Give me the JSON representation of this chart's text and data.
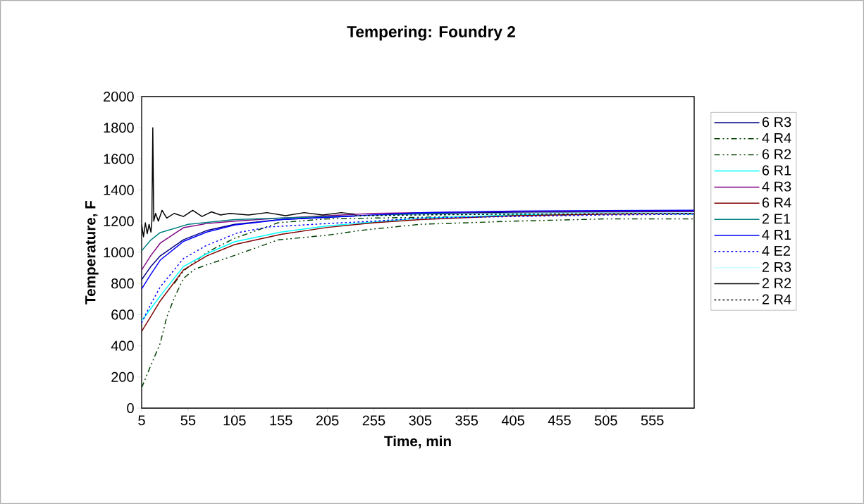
{
  "chart_data": {
    "type": "line",
    "title": "Tempering: Foundry 2",
    "xlabel": "Time, min",
    "ylabel": "Temperature, F",
    "xlim": [
      5,
      600
    ],
    "xticks": [
      5,
      55,
      105,
      155,
      205,
      255,
      305,
      355,
      405,
      455,
      505,
      555
    ],
    "ylim": [
      0,
      2000
    ],
    "yticks": [
      0,
      200,
      400,
      600,
      800,
      1000,
      1200,
      1400,
      1600,
      1800,
      2000
    ],
    "legend": "right",
    "grid": false,
    "series": [
      {
        "name": "6 R3",
        "color": "#000080",
        "line_style": "solid",
        "x": [
          5,
          15,
          25,
          50,
          75,
          105,
          155,
          205,
          305,
          405,
          505,
          600
        ],
        "values": [
          824,
          910,
          977,
          1081,
          1140,
          1180,
          1210,
          1225,
          1250,
          1258,
          1260,
          1262
        ]
      },
      {
        "name": "4 R4",
        "color": "#004000",
        "line_style": "dashed",
        "x": [
          5,
          15,
          25,
          32,
          40,
          50,
          62,
          75,
          105,
          152,
          205,
          240,
          255,
          305,
          405,
          505,
          600
        ],
        "values": [
          131,
          276,
          416,
          584,
          706,
          833,
          891,
          920,
          980,
          1080,
          1110,
          1140,
          1150,
          1180,
          1200,
          1215,
          1215
        ]
      },
      {
        "name": "6 R2",
        "color": "#004000",
        "line_style": "dashed",
        "x": [
          40,
          50,
          75,
          105,
          152,
          205,
          255,
          305,
          405,
          505,
          600
        ],
        "values": [
          800,
          880,
          1000,
          1090,
          1190,
          1215,
          1220,
          1225,
          1235,
          1245,
          1250
        ]
      },
      {
        "name": "6 R1",
        "color": "#00ffff",
        "line_style": "solid",
        "x": [
          5,
          15,
          25,
          50,
          75,
          105,
          155,
          205,
          255,
          305,
          405,
          505,
          600
        ],
        "values": [
          561,
          640,
          720,
          909,
          991,
          1068,
          1130,
          1170,
          1195,
          1220,
          1240,
          1250,
          1245
        ]
      },
      {
        "name": "4 R3",
        "color": "#800080",
        "line_style": "solid",
        "x": [
          5,
          15,
          25,
          50,
          75,
          105,
          155,
          205,
          255,
          305,
          405,
          505,
          600
        ],
        "values": [
          887,
          980,
          1059,
          1158,
          1185,
          1200,
          1220,
          1235,
          1250,
          1255,
          1262,
          1264,
          1265
        ]
      },
      {
        "name": "6 R4",
        "color": "#800000",
        "line_style": "solid",
        "x": [
          5,
          15,
          25,
          50,
          75,
          105,
          155,
          205,
          255,
          305,
          405,
          505,
          600
        ],
        "values": [
          493,
          590,
          688,
          887,
          977,
          1050,
          1115,
          1160,
          1190,
          1210,
          1235,
          1245,
          1250
        ]
      },
      {
        "name": "2 E1",
        "color": "#008080",
        "line_style": "solid",
        "x": [
          5,
          15,
          25,
          55,
          105,
          205,
          305,
          405,
          505,
          600
        ],
        "values": [
          1010,
          1080,
          1127,
          1180,
          1210,
          1230,
          1245,
          1250,
          1253,
          1255
        ]
      },
      {
        "name": "4 R1",
        "color": "#0000ff",
        "line_style": "solid",
        "x": [
          5,
          15,
          25,
          50,
          75,
          105,
          155,
          205,
          305,
          405,
          505,
          600
        ],
        "values": [
          765,
          860,
          950,
          1070,
          1130,
          1175,
          1210,
          1225,
          1255,
          1265,
          1268,
          1270
        ]
      },
      {
        "name": "4 E2",
        "color": "#0000ff",
        "line_style": "dotted",
        "x": [
          5,
          15,
          25,
          50,
          75,
          109,
          142,
          205,
          255,
          305,
          405,
          505,
          600
        ],
        "values": [
          547,
          670,
          778,
          960,
          1045,
          1127,
          1163,
          1185,
          1200,
          1220,
          1230,
          1240,
          1245
        ]
      },
      {
        "name": "2 R3",
        "color": "#ccffff",
        "line_style": "solid",
        "x": [
          235,
          305,
          405,
          505,
          600
        ],
        "values": [
          1230,
          1240,
          1248,
          1252,
          1255
        ]
      },
      {
        "name": "2 R2",
        "color": "#000000",
        "line_style": "solid",
        "x": [
          5,
          7,
          9,
          11,
          13,
          15,
          16,
          17,
          18,
          20,
          23,
          27,
          32,
          40,
          50,
          60,
          70,
          80,
          90,
          100,
          120,
          140,
          160,
          180,
          200,
          220,
          235
        ],
        "values": [
          1180,
          1100,
          1190,
          1120,
          1180,
          1130,
          1200,
          1800,
          1200,
          1250,
          1200,
          1270,
          1220,
          1250,
          1230,
          1270,
          1230,
          1260,
          1240,
          1250,
          1240,
          1255,
          1235,
          1255,
          1240,
          1255,
          1245
        ]
      },
      {
        "name": "2 R4",
        "color": "#000000",
        "line_style": "dotted",
        "x": [
          235,
          305,
          405,
          505,
          600
        ],
        "values": [
          1235,
          1240,
          1245,
          1248,
          1250
        ]
      }
    ]
  }
}
